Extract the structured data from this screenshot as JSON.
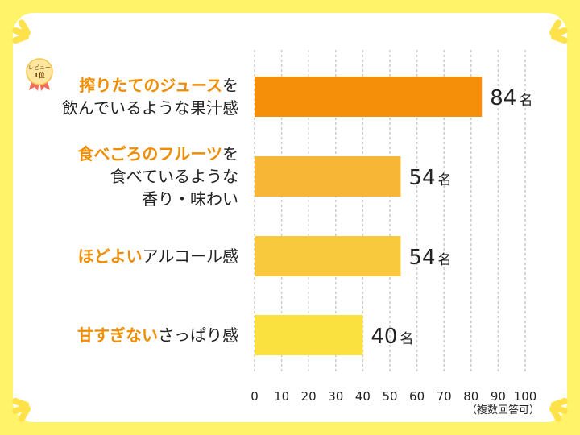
{
  "chart_data": {
    "type": "bar",
    "orientation": "horizontal",
    "categories": [
      "搾りたてのジュースを飲んでいるような果汁感",
      "食べごろのフルーツを食べているような香り・味わい",
      "ほどよいアルコール感",
      "甘すぎないさっぱり感"
    ],
    "category_lines": [
      [
        {
          "hl": "搾りたてのジュース",
          "rest": "を"
        },
        {
          "hl": "",
          "rest": "飲んでいるような果汁感"
        }
      ],
      [
        {
          "hl": "食べごろのフルーツ",
          "rest": "を"
        },
        {
          "hl": "",
          "rest": "食べているような"
        },
        {
          "hl": "",
          "rest": "香り・味わい"
        }
      ],
      [
        {
          "hl": "ほどよい",
          "rest": "アルコール感"
        }
      ],
      [
        {
          "hl": "甘すぎない",
          "rest": "さっぱり感"
        }
      ]
    ],
    "values": [
      84,
      54,
      54,
      40
    ],
    "value_unit": "名",
    "bar_colors": [
      "#f58f0a",
      "#f7b636",
      "#f9c93d",
      "#fbe13f"
    ],
    "xlim": [
      0,
      100
    ],
    "xticks": [
      0,
      10,
      20,
      30,
      40,
      50,
      60,
      70,
      80,
      90,
      100
    ],
    "grid": true,
    "note": "（複数回答可）"
  },
  "badge": {
    "line1": "レビュー",
    "line2": "1位"
  },
  "colors": {
    "frame": "#fff36a",
    "highlight": "#f08c00",
    "grid": "#cccccc"
  }
}
